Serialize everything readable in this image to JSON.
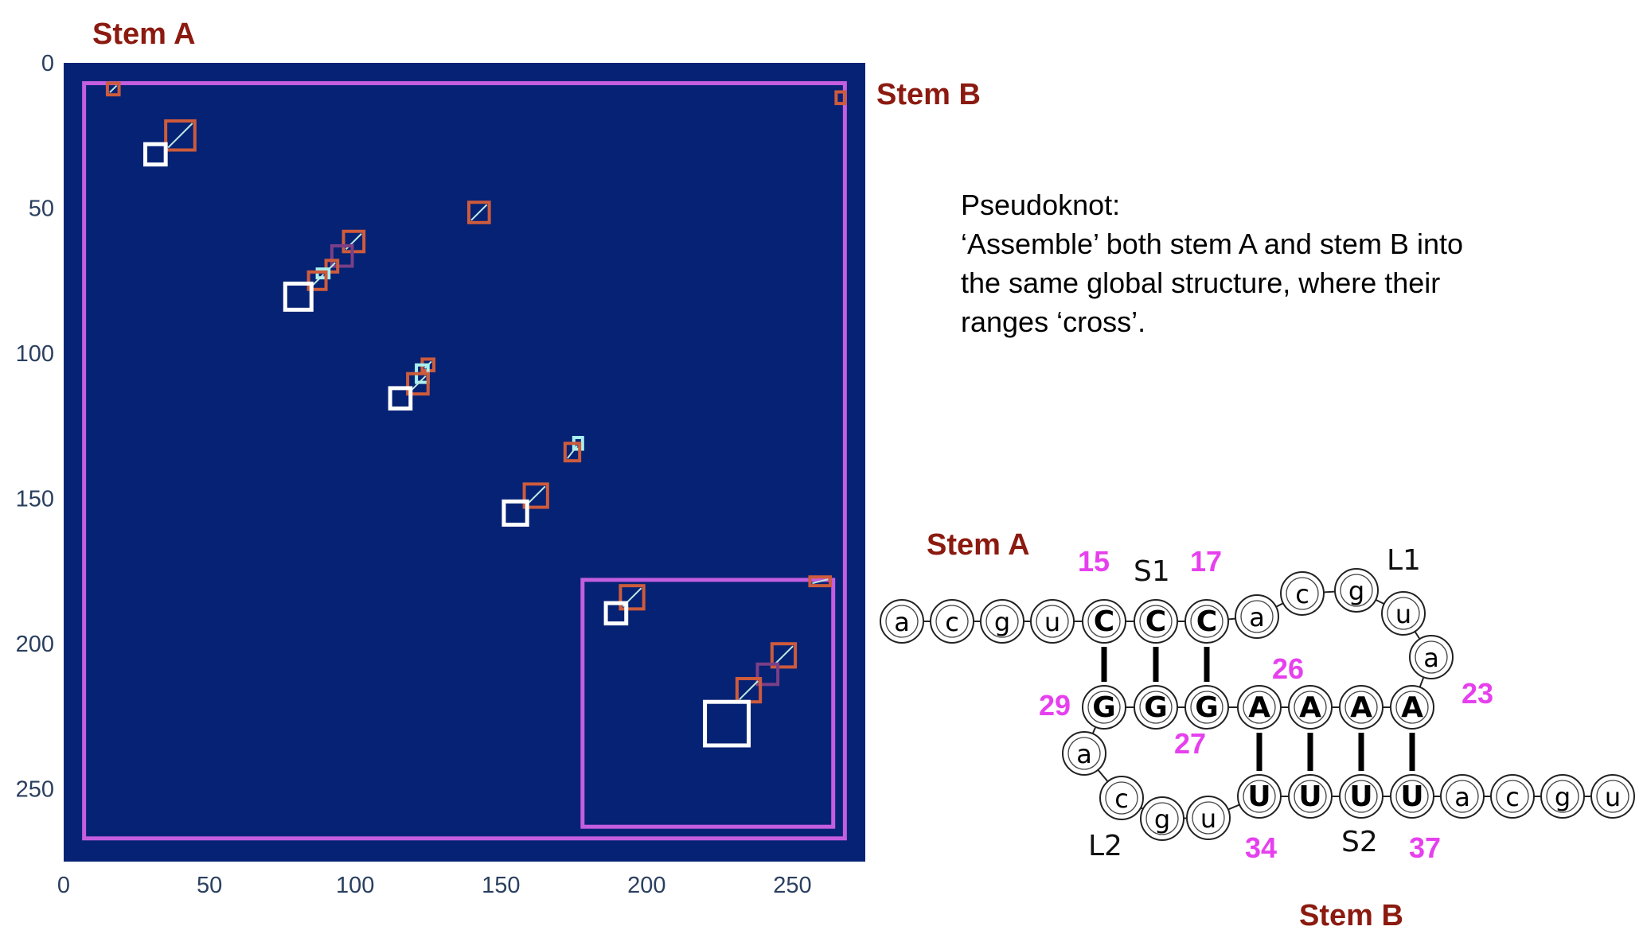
{
  "colors": {
    "matrix_bg": "#062274",
    "big_box": "#c45ee0",
    "stem_box": "#cd5b3c",
    "pair_box": "#ffffff",
    "cyan_box": "#a8f0f0",
    "purple_box": "#7a3f86",
    "stem_label": "#8b1a10",
    "magenta_number": "#e640ee",
    "tick_text": "#2a3f5f"
  },
  "labels": {
    "stem_a_top": "Stem A",
    "stem_b_top": "Stem B",
    "stem_a_diagram": "Stem A",
    "stem_b_bottom": "Stem B"
  },
  "note": {
    "heading": "Pseudoknot:",
    "lines": [
      "‘Assemble’ both stem A and stem B into",
      "the same global structure, where their",
      "ranges ‘cross’."
    ]
  },
  "chart_data": {
    "type": "heatmap",
    "x_range": [
      0,
      275
    ],
    "y_range": [
      0,
      275
    ],
    "y_reversed": true,
    "x_ticks": [
      0,
      50,
      100,
      150,
      200,
      250
    ],
    "y_ticks": [
      0,
      50,
      100,
      150,
      200,
      250
    ],
    "grid": false,
    "regions": [
      {
        "kind": "big",
        "x0": 7,
        "y0": 7,
        "x1": 268,
        "y1": 267
      },
      {
        "kind": "big",
        "x0": 178,
        "y0": 178,
        "x1": 264,
        "y1": 263
      }
    ],
    "boxes": [
      {
        "kind": "stem",
        "x0": 15,
        "y0": 7,
        "x1": 19,
        "y1": 11
      },
      {
        "kind": "stem",
        "x0": 265,
        "y0": 10,
        "x1": 268,
        "y1": 14
      },
      {
        "kind": "stem",
        "x0": 35,
        "y0": 20,
        "x1": 45,
        "y1": 30
      },
      {
        "kind": "pair",
        "x0": 28,
        "y0": 28,
        "x1": 35,
        "y1": 35
      },
      {
        "kind": "stem",
        "x0": 139,
        "y0": 48,
        "x1": 146,
        "y1": 55
      },
      {
        "kind": "stem",
        "x0": 96,
        "y0": 58,
        "x1": 103,
        "y1": 65
      },
      {
        "kind": "purple",
        "x0": 92,
        "y0": 63,
        "x1": 99,
        "y1": 70
      },
      {
        "kind": "stem",
        "x0": 90,
        "y0": 68,
        "x1": 94,
        "y1": 72
      },
      {
        "kind": "cyan",
        "x0": 87,
        "y0": 71,
        "x1": 91,
        "y1": 74
      },
      {
        "kind": "stem",
        "x0": 84,
        "y0": 72,
        "x1": 90,
        "y1": 78
      },
      {
        "kind": "pair",
        "x0": 76,
        "y0": 76,
        "x1": 85,
        "y1": 85
      },
      {
        "kind": "stem",
        "x0": 123,
        "y0": 102,
        "x1": 127,
        "y1": 106
      },
      {
        "kind": "cyan",
        "x0": 121,
        "y0": 104,
        "x1": 125,
        "y1": 110
      },
      {
        "kind": "stem",
        "x0": 118,
        "y0": 107,
        "x1": 125,
        "y1": 114
      },
      {
        "kind": "pair",
        "x0": 112,
        "y0": 112,
        "x1": 119,
        "y1": 119
      },
      {
        "kind": "cyan",
        "x0": 175,
        "y0": 129,
        "x1": 178,
        "y1": 133
      },
      {
        "kind": "stem",
        "x0": 172,
        "y0": 131,
        "x1": 177,
        "y1": 137
      },
      {
        "kind": "stem",
        "x0": 158,
        "y0": 145,
        "x1": 166,
        "y1": 153
      },
      {
        "kind": "pair",
        "x0": 151,
        "y0": 151,
        "x1": 159,
        "y1": 159
      },
      {
        "kind": "stem",
        "x0": 256,
        "y0": 177,
        "x1": 263,
        "y1": 180
      },
      {
        "kind": "stem",
        "x0": 191,
        "y0": 180,
        "x1": 199,
        "y1": 188
      },
      {
        "kind": "pair",
        "x0": 186,
        "y0": 186,
        "x1": 193,
        "y1": 193
      },
      {
        "kind": "stem",
        "x0": 243,
        "y0": 200,
        "x1": 251,
        "y1": 208
      },
      {
        "kind": "purple",
        "x0": 238,
        "y0": 207,
        "x1": 245,
        "y1": 214
      },
      {
        "kind": "stem",
        "x0": 231,
        "y0": 212,
        "x1": 239,
        "y1": 220
      },
      {
        "kind": "pair",
        "x0": 220,
        "y0": 220,
        "x1": 235,
        "y1": 235
      }
    ]
  },
  "rna": {
    "segments": {
      "s1": "S1",
      "l1": "L1",
      "s2": "S2",
      "l2": "L2"
    },
    "nucleotides": [
      {
        "ch": "a",
        "bold": false
      },
      {
        "ch": "c",
        "bold": false
      },
      {
        "ch": "g",
        "bold": false
      },
      {
        "ch": "u",
        "bold": false
      },
      {
        "ch": "C",
        "bold": true
      },
      {
        "ch": "C",
        "bold": true
      },
      {
        "ch": "C",
        "bold": true
      },
      {
        "ch": "a",
        "bold": false
      },
      {
        "ch": "c",
        "bold": false
      },
      {
        "ch": "g",
        "bold": false
      },
      {
        "ch": "u",
        "bold": false
      },
      {
        "ch": "a",
        "bold": false
      },
      {
        "ch": "A",
        "bold": true
      },
      {
        "ch": "A",
        "bold": true
      },
      {
        "ch": "A",
        "bold": true
      },
      {
        "ch": "A",
        "bold": true
      },
      {
        "ch": "G",
        "bold": true
      },
      {
        "ch": "G",
        "bold": true
      },
      {
        "ch": "G",
        "bold": true
      },
      {
        "ch": "a",
        "bold": false
      },
      {
        "ch": "c",
        "bold": false
      },
      {
        "ch": "g",
        "bold": false
      },
      {
        "ch": "u",
        "bold": false
      },
      {
        "ch": "U",
        "bold": true
      },
      {
        "ch": "U",
        "bold": true
      },
      {
        "ch": "U",
        "bold": true
      },
      {
        "ch": "U",
        "bold": true
      },
      {
        "ch": "a",
        "bold": false
      },
      {
        "ch": "c",
        "bold": false
      },
      {
        "ch": "g",
        "bold": false
      },
      {
        "ch": "u",
        "bold": false
      }
    ],
    "pairs": [
      [
        4,
        18
      ],
      [
        5,
        17
      ],
      [
        6,
        16
      ],
      [
        12,
        26
      ],
      [
        13,
        25
      ],
      [
        14,
        24
      ],
      [
        15,
        23
      ]
    ],
    "position_numbers": [
      "15",
      "17",
      "26",
      "29",
      "23",
      "27",
      "34",
      "37"
    ]
  }
}
